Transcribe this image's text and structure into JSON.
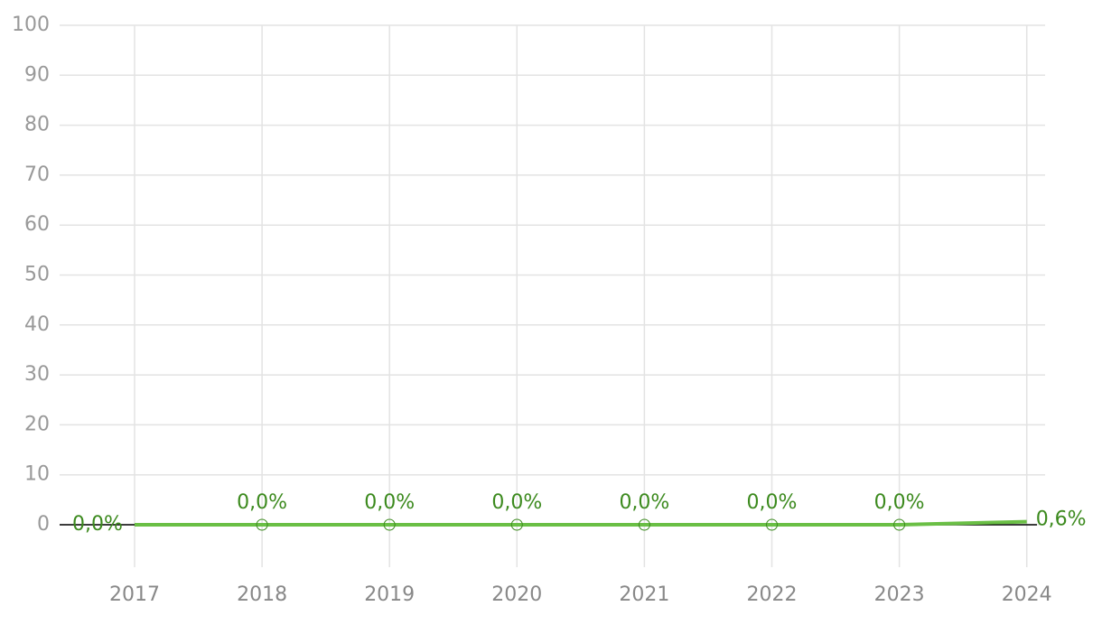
{
  "chart_data": {
    "type": "line",
    "categories": [
      "2017",
      "2018",
      "2019",
      "2020",
      "2021",
      "2022",
      "2023",
      "2024"
    ],
    "series": [
      {
        "color": "#6abf45",
        "values": [
          0,
          0,
          0,
          0,
          0,
          0,
          0,
          0.6
        ],
        "value_labels": [
          "0,0%",
          "0,0%",
          "0,0%",
          "0,0%",
          "0,0%",
          "0,0%",
          "0,0%",
          "0,6%"
        ]
      }
    ],
    "ylim": [
      -8.5,
      100
    ],
    "yticks": [
      0,
      10,
      20,
      30,
      40,
      50,
      60,
      70,
      80,
      90,
      100
    ],
    "grid": true
  }
}
